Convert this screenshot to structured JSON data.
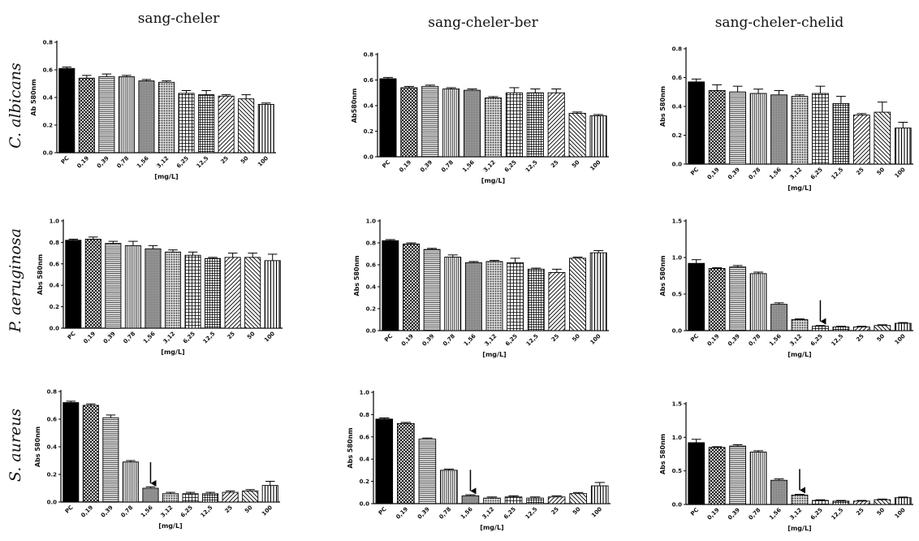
{
  "figure": {
    "columns": [
      "sang-cheler",
      "sang-cheler-ber",
      "sang-cheler-chelid"
    ],
    "rows": [
      "C. albicans",
      "P. aeruginosa",
      "S. aureus"
    ]
  },
  "chart_data": [
    {
      "id": "p00",
      "type": "bar",
      "row": 0,
      "col": 0,
      "ylabel": "Ab 580nm",
      "xlabel": "[mg/L]",
      "ylim": [
        0,
        0.8
      ],
      "yticks": [
        "0.0",
        "0.2",
        "0.4",
        "0.6",
        "0.8"
      ],
      "categories": [
        "PC",
        "0,19",
        "0,39",
        "0,78",
        "1,56",
        "3,12",
        "6,25",
        "12,5",
        "25",
        "50",
        "100"
      ],
      "values": [
        0.61,
        0.54,
        0.55,
        0.55,
        0.52,
        0.51,
        0.43,
        0.42,
        0.41,
        0.39,
        0.35
      ],
      "errors": [
        0.01,
        0.02,
        0.02,
        0.01,
        0.01,
        0.01,
        0.02,
        0.03,
        0.01,
        0.03,
        0.01
      ],
      "arrow_at": null
    },
    {
      "id": "p01",
      "type": "bar",
      "row": 0,
      "col": 1,
      "ylabel": "Ab580nm",
      "xlabel": "[mg/L]",
      "ylim": [
        0,
        0.8
      ],
      "yticks": [
        "0.0",
        "0.2",
        "0.4",
        "0.6",
        "0.8"
      ],
      "categories": [
        "PC",
        "0,19",
        "0,39",
        "0,78",
        "1,56",
        "3,12",
        "6,25",
        "12,5",
        "25",
        "50",
        "100"
      ],
      "values": [
        0.61,
        0.54,
        0.55,
        0.53,
        0.52,
        0.46,
        0.5,
        0.5,
        0.5,
        0.34,
        0.32
      ],
      "errors": [
        0.01,
        0.01,
        0.01,
        0.01,
        0.01,
        0.01,
        0.04,
        0.03,
        0.03,
        0.01,
        0.01
      ],
      "arrow_at": null
    },
    {
      "id": "p02",
      "type": "bar",
      "row": 0,
      "col": 2,
      "ylabel": "Abs 580nm",
      "xlabel": "[mg/L]",
      "ylim": [
        0,
        0.8
      ],
      "yticks": [
        "0.0",
        "0.2",
        "0.4",
        "0.6",
        "0.8"
      ],
      "categories": [
        "PC",
        "0,19",
        "0,39",
        "0,78",
        "1,56",
        "3,12",
        "6,25",
        "12,5",
        "25",
        "50",
        "100"
      ],
      "values": [
        0.57,
        0.51,
        0.5,
        0.49,
        0.48,
        0.47,
        0.49,
        0.42,
        0.34,
        0.36,
        0.25
      ],
      "errors": [
        0.02,
        0.04,
        0.04,
        0.03,
        0.03,
        0.01,
        0.05,
        0.05,
        0.01,
        0.07,
        0.04
      ],
      "arrow_at": null
    },
    {
      "id": "p10",
      "type": "bar",
      "row": 1,
      "col": 0,
      "ylabel": "Abs 580nm",
      "xlabel": "[mg/L]",
      "ylim": [
        0,
        1.0
      ],
      "yticks": [
        "0.0",
        "0.2",
        "0.4",
        "0.6",
        "0.8",
        "1.0"
      ],
      "categories": [
        "PC",
        "0,19",
        "0,39",
        "0,78",
        "1,56",
        "3,12",
        "6,25",
        "12,5",
        "25",
        "50",
        "100"
      ],
      "values": [
        0.82,
        0.83,
        0.79,
        0.77,
        0.74,
        0.71,
        0.68,
        0.65,
        0.66,
        0.66,
        0.63
      ],
      "errors": [
        0.01,
        0.02,
        0.02,
        0.04,
        0.03,
        0.02,
        0.03,
        0.01,
        0.04,
        0.04,
        0.06
      ],
      "arrow_at": null
    },
    {
      "id": "p11",
      "type": "bar",
      "row": 1,
      "col": 1,
      "ylabel": "Abs 580nm",
      "xlabel": "[mg/L]",
      "ylim": [
        0,
        1.0
      ],
      "yticks": [
        "0.0",
        "0.2",
        "0.4",
        "0.6",
        "0.8",
        "1.0"
      ],
      "categories": [
        "PC",
        "0,19",
        "0,39",
        "0,78",
        "1,56",
        "3,12",
        "6,25",
        "12,5",
        "25",
        "50",
        "100"
      ],
      "values": [
        0.82,
        0.79,
        0.74,
        0.67,
        0.62,
        0.63,
        0.62,
        0.56,
        0.53,
        0.66,
        0.71
      ],
      "errors": [
        0.01,
        0.01,
        0.01,
        0.02,
        0.01,
        0.01,
        0.04,
        0.01,
        0.03,
        0.01,
        0.02
      ],
      "arrow_at": null
    },
    {
      "id": "p12",
      "type": "bar",
      "row": 1,
      "col": 2,
      "ylabel": "Abs 580nm",
      "xlabel": "[mg/L]",
      "ylim": [
        0,
        1.5
      ],
      "yticks": [
        "0.0",
        "0.5",
        "1.0",
        "1.5"
      ],
      "categories": [
        "PC",
        "0,19",
        "0,39",
        "0,78",
        "1,56",
        "3,12",
        "6,25",
        "12,5",
        "25",
        "50",
        "100"
      ],
      "values": [
        0.92,
        0.85,
        0.87,
        0.78,
        0.36,
        0.15,
        0.06,
        0.05,
        0.05,
        0.07,
        0.1
      ],
      "errors": [
        0.05,
        0.01,
        0.02,
        0.02,
        0.02,
        0.01,
        0.01,
        0.01,
        0.01,
        0.01,
        0.01
      ],
      "arrow_at": "6,25"
    },
    {
      "id": "p20",
      "type": "bar",
      "row": 2,
      "col": 0,
      "ylabel": "Abs 580nm",
      "xlabel": "[mg/L]",
      "ylim": [
        0,
        0.8
      ],
      "yticks": [
        "0.0",
        "0.2",
        "0.4",
        "0.6",
        "0.8"
      ],
      "categories": [
        "PC",
        "0,19",
        "0,39",
        "0,78",
        "1,56",
        "3,12",
        "6,25",
        "12,5",
        "25",
        "50",
        "100"
      ],
      "values": [
        0.72,
        0.7,
        0.61,
        0.29,
        0.1,
        0.06,
        0.06,
        0.06,
        0.07,
        0.08,
        0.12
      ],
      "errors": [
        0.01,
        0.01,
        0.02,
        0.01,
        0.01,
        0.01,
        0.01,
        0.01,
        0.01,
        0.01,
        0.03
      ],
      "arrow_at": "1,56"
    },
    {
      "id": "p21",
      "type": "bar",
      "row": 2,
      "col": 1,
      "ylabel": "Abs 580nm",
      "xlabel": "[mg/L]",
      "ylim": [
        0,
        1.0
      ],
      "yticks": [
        "0.0",
        "0.2",
        "0.4",
        "0.6",
        "0.8",
        "1.0"
      ],
      "categories": [
        "PC",
        "0,19",
        "0,39",
        "0,78",
        "1,56",
        "3,12",
        "6,25",
        "12,5",
        "25",
        "50",
        "100"
      ],
      "values": [
        0.76,
        0.72,
        0.58,
        0.3,
        0.07,
        0.05,
        0.06,
        0.05,
        0.06,
        0.09,
        0.16
      ],
      "errors": [
        0.01,
        0.01,
        0.01,
        0.01,
        0.01,
        0.01,
        0.01,
        0.01,
        0.01,
        0.01,
        0.03
      ],
      "arrow_at": "1,56"
    },
    {
      "id": "p22",
      "type": "bar",
      "row": 2,
      "col": 2,
      "ylabel": "Abs 580nm",
      "xlabel": "[mg/L]",
      "ylim": [
        0,
        1.5
      ],
      "yticks": [
        "0.0",
        "0.5",
        "1.0",
        "1.5"
      ],
      "categories": [
        "PC",
        "0,19",
        "0,39",
        "0,78",
        "1,56",
        "3,12",
        "6,25",
        "12,5",
        "25",
        "50",
        "100"
      ],
      "values": [
        0.92,
        0.85,
        0.87,
        0.78,
        0.36,
        0.14,
        0.06,
        0.05,
        0.05,
        0.07,
        0.1
      ],
      "errors": [
        0.05,
        0.01,
        0.02,
        0.02,
        0.02,
        0.01,
        0.01,
        0.01,
        0.01,
        0.01,
        0.01
      ],
      "arrow_at": "3,12"
    }
  ]
}
